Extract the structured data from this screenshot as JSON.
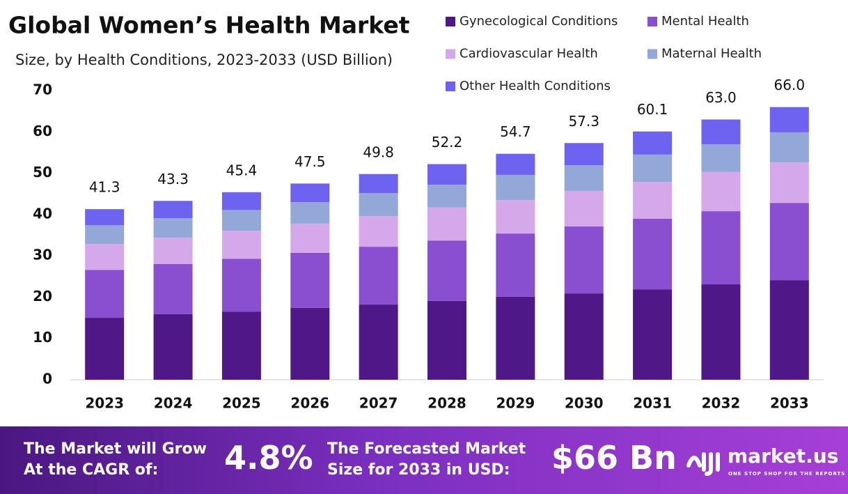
{
  "chart_data": {
    "type": "stacked_bar",
    "title": "Global Women’s Health Market",
    "subtitle": "Size, by Health Conditions, 2023-2033 (USD Billion)",
    "categories": [
      "2023",
      "2024",
      "2025",
      "2026",
      "2027",
      "2028",
      "2029",
      "2030",
      "2031",
      "2032",
      "2033"
    ],
    "series": [
      {
        "name": "Gynecological Conditions",
        "color": "#4f1787",
        "values": [
          15.0,
          15.9,
          16.5,
          17.4,
          18.2,
          19.1,
          20.1,
          20.9,
          21.9,
          23.1,
          24.1
        ]
      },
      {
        "name": "Mental Health",
        "color": "#8a4fd1",
        "values": [
          11.6,
          12.1,
          12.8,
          13.3,
          14.0,
          14.6,
          15.3,
          16.2,
          17.1,
          17.7,
          18.7
        ]
      },
      {
        "name": "Cardiovascular Health",
        "color": "#d4a8ea",
        "values": [
          6.3,
          6.4,
          6.8,
          7.1,
          7.4,
          8.0,
          8.1,
          8.6,
          8.9,
          9.5,
          9.8
        ]
      },
      {
        "name": "Maternal Health",
        "color": "#94a7d9",
        "values": [
          4.5,
          4.7,
          5.0,
          5.2,
          5.6,
          5.5,
          6.1,
          6.2,
          6.6,
          6.7,
          7.3
        ]
      },
      {
        "name": "Other Health Conditions",
        "color": "#6e63f0",
        "values": [
          3.9,
          4.2,
          4.3,
          4.5,
          4.6,
          5.0,
          5.1,
          5.4,
          5.6,
          6.0,
          6.1
        ]
      }
    ],
    "totals": [
      41.3,
      43.3,
      45.4,
      47.5,
      49.8,
      52.2,
      54.7,
      57.3,
      60.1,
      63.0,
      66.0
    ],
    "total_labels": [
      "41.3",
      "43.3",
      "45.4",
      "47.5",
      "49.8",
      "52.2",
      "54.7",
      "57.3",
      "60.1",
      "63.0",
      "66.0"
    ],
    "ylim": [
      0,
      70
    ],
    "yticks": [
      0,
      10,
      20,
      30,
      40,
      50,
      60,
      70
    ]
  },
  "footer": {
    "cagr_text": [
      "The Market will Grow",
      "At the CAGR of:"
    ],
    "cagr": "4.8%",
    "forecast_text": [
      "The Forecasted Market",
      "Size for 2033 in USD:"
    ],
    "forecast": "$66 Bn",
    "brand": "market.us",
    "tagline": "ONE STOP SHOP FOR THE REPORTS"
  }
}
